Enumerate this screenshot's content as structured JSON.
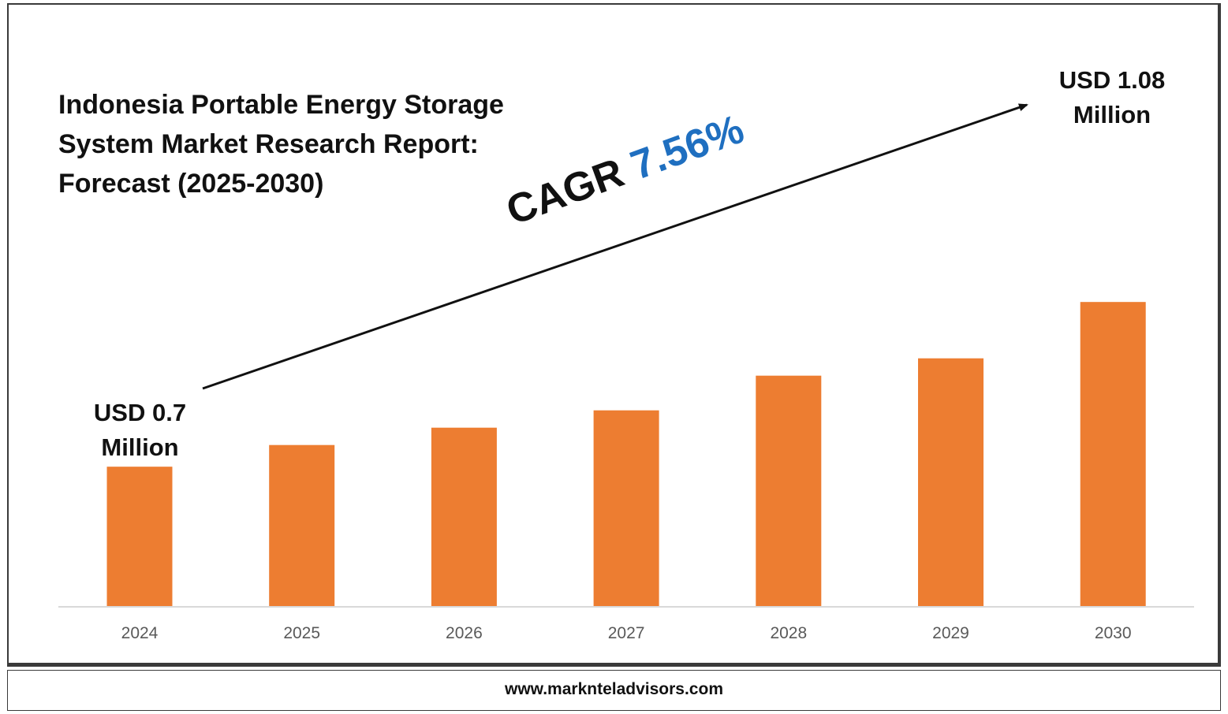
{
  "chart_data": {
    "type": "bar",
    "title": "Indonesia Portable Energy Storage System Market Research Report: Forecast (2025-2030)",
    "categories": [
      "2024",
      "2025",
      "2026",
      "2027",
      "2028",
      "2029",
      "2030"
    ],
    "values": [
      0.7,
      0.75,
      0.79,
      0.83,
      0.91,
      0.95,
      1.08
    ],
    "unit": "USD Million",
    "xlabel": "",
    "ylabel": "",
    "grid": false,
    "bar_color": "#ed7d31",
    "annotations": {
      "start_label": "USD 0.7\nMillion",
      "end_label": "USD 1.08\nMillion",
      "cagr_prefix": "CAGR ",
      "cagr_value": "7.56%"
    }
  },
  "footer": {
    "website": "www.marknteladvisors.com"
  },
  "colors": {
    "bar": "#ed7d31",
    "cagr": "#1f6fc0",
    "text": "#111111",
    "axis": "#d9d9d9"
  }
}
